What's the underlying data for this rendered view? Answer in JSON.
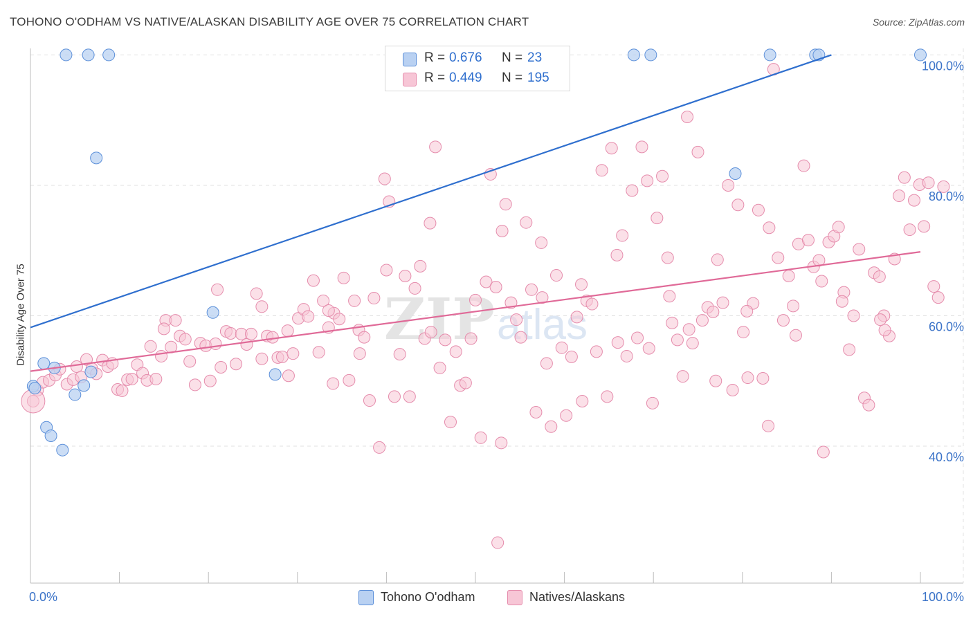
{
  "title": "TOHONO O'ODHAM VS NATIVE/ALASKAN DISABILITY AGE OVER 75 CORRELATION CHART",
  "source": "Source: ZipAtlas.com",
  "colors": {
    "blue": "#2f6fce",
    "blue_fill": "#b9d1f2",
    "blue_edge": "#5b8fd9",
    "pink": "#e06a98",
    "pink_fill": "#f7c6d6",
    "pink_edge": "#e58cac",
    "tick_label": "#3b73c8",
    "grid": "#e0e0e0"
  },
  "legend_top": {
    "r_label": "R =",
    "n_label": "N =",
    "rows": [
      {
        "r": "0.676",
        "n": "23",
        "series": "blue"
      },
      {
        "r": "0.449",
        "n": "195",
        "series": "pink"
      }
    ]
  },
  "legend_bottom": [
    "Tohono O'odham",
    "Natives/Alaskans"
  ],
  "chart_data": {
    "type": "scatter",
    "title": "TOHONO O'ODHAM VS NATIVE/ALASKAN DISABILITY AGE OVER 75 CORRELATION CHART",
    "xlabel": "",
    "ylabel": "Disability Age Over 75",
    "xlim": [
      0,
      100
    ],
    "ylim": [
      19,
      101
    ],
    "x_tick_labels": [
      "0.0%",
      "100.0%"
    ],
    "y_ticks": [
      40,
      60,
      80,
      100
    ],
    "y_tick_labels": [
      "40.0%",
      "60.0%",
      "80.0%",
      "100.0%"
    ],
    "grid": true,
    "legend_placement": "top-center",
    "watermark": {
      "text1": "ZIP",
      "text2": "atlas"
    },
    "series": [
      {
        "name": "Tohono O'odham",
        "color": "blue",
        "r": 0.676,
        "n": 23,
        "trend": {
          "x0": 0,
          "y0": 58.2,
          "x1": 90,
          "y1": 100
        },
        "points": [
          [
            0.3,
            49.2
          ],
          [
            1.5,
            52.7
          ],
          [
            2.7,
            52
          ],
          [
            1.8,
            42.9
          ],
          [
            2.3,
            41.6
          ],
          [
            3.6,
            39.4
          ],
          [
            5,
            47.9
          ],
          [
            6,
            49.3
          ],
          [
            6.8,
            51.4
          ],
          [
            7.4,
            84.2
          ],
          [
            4,
            100
          ],
          [
            6.5,
            100
          ],
          [
            8.8,
            100
          ],
          [
            20.5,
            60.5
          ],
          [
            27.5,
            51
          ],
          [
            67.8,
            100
          ],
          [
            69.7,
            100
          ],
          [
            79.2,
            81.8
          ],
          [
            83.1,
            100
          ],
          [
            88.2,
            100
          ],
          [
            88.6,
            100
          ],
          [
            100,
            100
          ],
          [
            0.5,
            48.9
          ]
        ]
      },
      {
        "name": "Natives/Alaskans",
        "color": "pink",
        "r": 0.449,
        "n": 195,
        "trend": {
          "x0": 0,
          "y0": 51.5,
          "x1": 100,
          "y1": 69.8
        },
        "points": [
          [
            0.8,
            48.6
          ],
          [
            1.4,
            49.8
          ],
          [
            2.1,
            50.1
          ],
          [
            2.8,
            50.9
          ],
          [
            3.3,
            51.8
          ],
          [
            4.1,
            49.5
          ],
          [
            4.8,
            50.2
          ],
          [
            5.2,
            52.2
          ],
          [
            5.7,
            50.6
          ],
          [
            6.3,
            53.3
          ],
          [
            6.9,
            51.9
          ],
          [
            7.4,
            51.1
          ],
          [
            8.1,
            53.2
          ],
          [
            8.7,
            52.2
          ],
          [
            9.2,
            52.7
          ],
          [
            9.8,
            48.7
          ],
          [
            10.3,
            48.5
          ],
          [
            10.9,
            50.2
          ],
          [
            11.4,
            50.3
          ],
          [
            12.0,
            52.5
          ],
          [
            12.6,
            51.2
          ],
          [
            13.1,
            50.1
          ],
          [
            13.5,
            55.3
          ],
          [
            14.1,
            50.3
          ],
          [
            14.7,
            53.8
          ],
          [
            15.2,
            59.3
          ],
          [
            15.8,
            55.2
          ],
          [
            16.3,
            59.3
          ],
          [
            16.8,
            56.9
          ],
          [
            17.4,
            56.4
          ],
          [
            17.9,
            53.0
          ],
          [
            18.5,
            49.4
          ],
          [
            19.1,
            55.8
          ],
          [
            19.7,
            55.4
          ],
          [
            20.2,
            50.0
          ],
          [
            20.8,
            55.7
          ],
          [
            21.4,
            52.1
          ],
          [
            22.0,
            57.6
          ],
          [
            22.5,
            57.3
          ],
          [
            23.1,
            52.6
          ],
          [
            23.7,
            57.2
          ],
          [
            24.3,
            55.6
          ],
          [
            24.8,
            57.2
          ],
          [
            25.4,
            63.4
          ],
          [
            26.0,
            53.4
          ],
          [
            26.6,
            56.9
          ],
          [
            27.2,
            56.7
          ],
          [
            27.8,
            53.6
          ],
          [
            28.3,
            53.7
          ],
          [
            28.9,
            57.7
          ],
          [
            29.5,
            54.2
          ],
          [
            30.1,
            59.6
          ],
          [
            30.7,
            61.0
          ],
          [
            31.2,
            59.9
          ],
          [
            31.8,
            65.4
          ],
          [
            32.4,
            54.4
          ],
          [
            32.9,
            62.3
          ],
          [
            33.5,
            58.2
          ],
          [
            34.1,
            60.4
          ],
          [
            34.7,
            59.5
          ],
          [
            35.2,
            65.8
          ],
          [
            35.8,
            50.1
          ],
          [
            36.4,
            62.3
          ],
          [
            36.9,
            57.8
          ],
          [
            37.5,
            56.7
          ],
          [
            38.1,
            47.0
          ],
          [
            38.6,
            62.7
          ],
          [
            39.2,
            39.8
          ],
          [
            39.8,
            81.0
          ],
          [
            40.3,
            77.5
          ],
          [
            40.9,
            47.6
          ],
          [
            41.5,
            54.1
          ],
          [
            42.1,
            66.1
          ],
          [
            42.6,
            47.6
          ],
          [
            43.2,
            64.2
          ],
          [
            43.8,
            67.6
          ],
          [
            44.3,
            56.5
          ],
          [
            44.9,
            74.2
          ],
          [
            45.5,
            85.9
          ],
          [
            46.0,
            52.0
          ],
          [
            46.6,
            56.3
          ],
          [
            47.2,
            43.7
          ],
          [
            47.8,
            54.5
          ],
          [
            48.3,
            49.3
          ],
          [
            48.9,
            49.7
          ],
          [
            49.5,
            56.5
          ],
          [
            50.0,
            62.4
          ],
          [
            50.6,
            41.3
          ],
          [
            51.2,
            65.2
          ],
          [
            51.7,
            81.7
          ],
          [
            52.3,
            64.4
          ],
          [
            52.9,
            40.5
          ],
          [
            53.4,
            77.1
          ],
          [
            54.0,
            62.0
          ],
          [
            54.6,
            59.4
          ],
          [
            55.1,
            56.7
          ],
          [
            55.7,
            74.3
          ],
          [
            56.3,
            64.0
          ],
          [
            56.8,
            45.2
          ],
          [
            57.4,
            71.2
          ],
          [
            58.0,
            52.7
          ],
          [
            58.5,
            43.0
          ],
          [
            59.1,
            66.2
          ],
          [
            59.7,
            55.1
          ],
          [
            60.2,
            44.7
          ],
          [
            60.8,
            53.7
          ],
          [
            61.4,
            59.8
          ],
          [
            61.9,
            64.8
          ],
          [
            62.5,
            62.3
          ],
          [
            63.1,
            61.8
          ],
          [
            63.6,
            54.5
          ],
          [
            64.2,
            82.3
          ],
          [
            64.8,
            47.6
          ],
          [
            65.3,
            85.7
          ],
          [
            65.9,
            69.3
          ],
          [
            66.5,
            72.3
          ],
          [
            67.0,
            53.8
          ],
          [
            67.6,
            79.2
          ],
          [
            68.2,
            56.6
          ],
          [
            68.7,
            85.9
          ],
          [
            69.3,
            80.7
          ],
          [
            69.9,
            46.6
          ],
          [
            70.4,
            75.0
          ],
          [
            71.0,
            81.4
          ],
          [
            71.6,
            68.9
          ],
          [
            72.1,
            58.9
          ],
          [
            72.7,
            56.3
          ],
          [
            73.3,
            50.7
          ],
          [
            73.8,
            90.5
          ],
          [
            74.4,
            55.8
          ],
          [
            75.0,
            85.1
          ],
          [
            75.5,
            59.3
          ],
          [
            76.1,
            61.3
          ],
          [
            76.7,
            60.6
          ],
          [
            77.2,
            68.6
          ],
          [
            77.8,
            62.0
          ],
          [
            78.4,
            80.0
          ],
          [
            78.9,
            48.6
          ],
          [
            79.5,
            77.0
          ],
          [
            80.1,
            57.5
          ],
          [
            80.6,
            50.5
          ],
          [
            81.2,
            61.9
          ],
          [
            81.8,
            76.2
          ],
          [
            82.3,
            50.4
          ],
          [
            82.9,
            43.1
          ],
          [
            83.5,
            97.8
          ],
          [
            84.0,
            68.9
          ],
          [
            84.6,
            59.3
          ],
          [
            85.2,
            66.1
          ],
          [
            85.7,
            61.5
          ],
          [
            86.3,
            71.0
          ],
          [
            86.9,
            83.0
          ],
          [
            87.4,
            71.6
          ],
          [
            88.0,
            67.5
          ],
          [
            88.6,
            68.5
          ],
          [
            89.1,
            39.1
          ],
          [
            89.7,
            71.3
          ],
          [
            90.3,
            72.2
          ],
          [
            90.8,
            73.6
          ],
          [
            91.4,
            63.6
          ],
          [
            92.0,
            54.8
          ],
          [
            92.5,
            60.0
          ],
          [
            93.1,
            70.2
          ],
          [
            93.7,
            47.4
          ],
          [
            94.2,
            46.3
          ],
          [
            94.8,
            66.6
          ],
          [
            95.4,
            66.0
          ],
          [
            95.9,
            60.0
          ],
          [
            96.5,
            56.9
          ],
          [
            97.1,
            68.7
          ],
          [
            97.6,
            78.4
          ],
          [
            98.2,
            81.2
          ],
          [
            98.8,
            73.2
          ],
          [
            99.3,
            77.7
          ],
          [
            99.9,
            80.1
          ],
          [
            100.4,
            73.7
          ],
          [
            100.9,
            80.4
          ],
          [
            101.5,
            64.5
          ],
          [
            102.0,
            62.8
          ],
          [
            102.6,
            79.8
          ],
          [
            52.5,
            25.2
          ],
          [
            15.0,
            58.0
          ],
          [
            21.0,
            64.0
          ],
          [
            33.5,
            60.8
          ],
          [
            37.0,
            54.2
          ],
          [
            45.0,
            57.5
          ],
          [
            57.5,
            62.8
          ],
          [
            62.0,
            46.9
          ],
          [
            69.5,
            55.0
          ],
          [
            71.8,
            63.0
          ],
          [
            77.0,
            50.0
          ],
          [
            80.5,
            60.7
          ],
          [
            86.0,
            57.0
          ],
          [
            91.2,
            62.2
          ],
          [
            96.0,
            57.8
          ],
          [
            34.0,
            49.6
          ],
          [
            26.0,
            61.4
          ],
          [
            40.0,
            67.0
          ],
          [
            53.0,
            73.0
          ],
          [
            66.0,
            55.9
          ],
          [
            74.0,
            57.9
          ],
          [
            83.0,
            73.5
          ],
          [
            88.9,
            65.3
          ],
          [
            95.5,
            59.4
          ],
          [
            29.0,
            50.8
          ],
          [
            0.3,
            46.9
          ]
        ]
      }
    ]
  }
}
